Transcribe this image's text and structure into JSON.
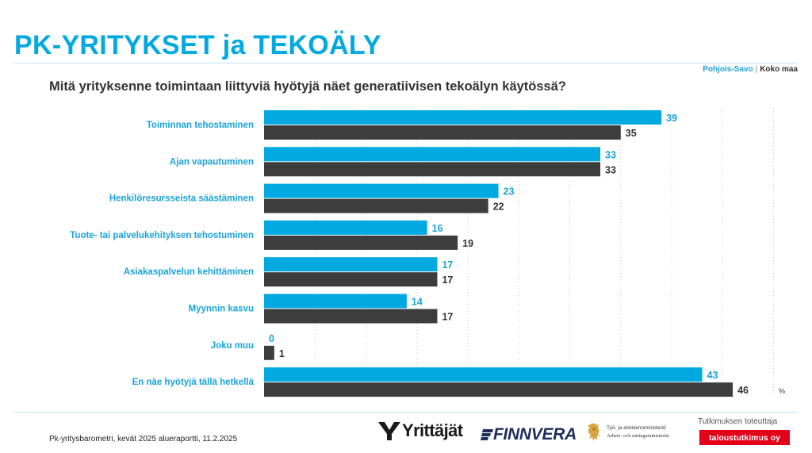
{
  "header": {
    "title": "PK-YRITYKSET ja TEKOÄLY",
    "question": "Mitä yrityksenne toimintaan liittyviä hyötyjä näet generatiivisen tekoälyn käytössä?"
  },
  "chart_data": {
    "type": "bar",
    "orientation": "horizontal",
    "categories": [
      "Toiminnan tehostaminen",
      "Ajan vapautuminen",
      "Henkilöresursseista säästäminen",
      "Tuote- tai palvelukehityksen tehostuminen",
      "Asiakaspalvelun kehittäminen",
      "Myynnin kasvu",
      "Joku muu",
      "En näe hyötyjä tällä hetkellä"
    ],
    "series": [
      {
        "name": "Pohjois-Savo",
        "color": "#00a9e0",
        "label_color": "#1aa2d9",
        "values": [
          39,
          33,
          23,
          16,
          17,
          14,
          0,
          43
        ]
      },
      {
        "name": "Koko maa",
        "color": "#3d3d3d",
        "label_color": "#333333",
        "values": [
          35,
          33,
          22,
          19,
          17,
          17,
          1,
          46
        ]
      }
    ],
    "unit": "%",
    "xlim": [
      0,
      50
    ],
    "grid": "vertical-dotted",
    "legend_position": "top-right",
    "data_labels": true
  },
  "footer": {
    "source": "Pk-yritysbarometri, kevät 2025 alueraportti, 11.2.2025",
    "logos": {
      "yrittajat": "Yrittäjät",
      "finnvera": "FINNVERA",
      "ministry_line1": "Työ- ja elinkeinoministeriö",
      "ministry_line2": "Arbets- och näringsministeriet"
    },
    "producer_label": "Tutkimuksen toteuttaja",
    "producer_name": "taloustutkimus oy"
  }
}
